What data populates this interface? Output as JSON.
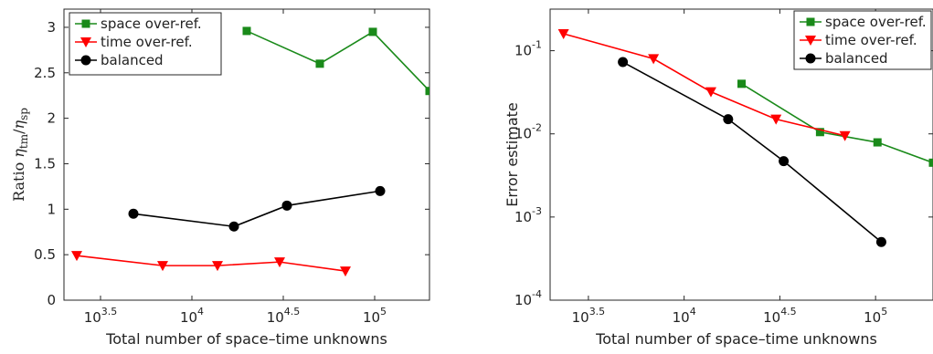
{
  "chart_data": [
    {
      "type": "line",
      "title": "",
      "xlabel": "Total number of space–time unknowns",
      "ylabel": {
        "prefix": "Ratio ",
        "num": "η",
        "num_sub": "tm",
        "sep": "/",
        "den": "η",
        "den_sub": "sp"
      },
      "xscale": "log10",
      "xlim": [
        3.3,
        5.3
      ],
      "ylim": [
        0,
        3.2
      ],
      "xticks": [
        {
          "base": "10",
          "exp": "3.5",
          "v": 3.5
        },
        {
          "base": "10",
          "exp": "4",
          "v": 4
        },
        {
          "base": "10",
          "exp": "4.5",
          "v": 4.5
        },
        {
          "base": "10",
          "exp": "5",
          "v": 5
        }
      ],
      "yticks": [
        {
          "label": "0",
          "v": 0
        },
        {
          "label": "0.5",
          "v": 0.5
        },
        {
          "label": "1",
          "v": 1
        },
        {
          "label": "1.5",
          "v": 1.5
        },
        {
          "label": "2",
          "v": 2
        },
        {
          "label": "2.5",
          "v": 2.5
        },
        {
          "label": "3",
          "v": 3
        }
      ],
      "grid": false,
      "legend_position": "top-left",
      "series": [
        {
          "name": "space over-ref.",
          "color": "#1a8a1a",
          "marker": "square",
          "x": [
            4.3,
            4.7,
            4.99,
            5.3
          ],
          "y": [
            2.96,
            2.6,
            2.95,
            2.3
          ]
        },
        {
          "name": "time over-ref.",
          "color": "#ff0000",
          "marker": "triangle-down",
          "x": [
            3.37,
            3.84,
            4.14,
            4.48,
            4.84
          ],
          "y": [
            0.49,
            0.38,
            0.38,
            0.42,
            0.32
          ]
        },
        {
          "name": "balanced",
          "color": "#000000",
          "marker": "circle",
          "x": [
            3.68,
            4.23,
            4.52,
            5.03
          ],
          "y": [
            0.95,
            0.81,
            1.04,
            1.2
          ]
        }
      ]
    },
    {
      "type": "line",
      "title": "",
      "xlabel": "Total number of space–time unknowns",
      "ylabel": "Error estimate",
      "xscale": "log10",
      "yscale": "log10",
      "xlim": [
        3.3,
        5.3
      ],
      "ylim": [
        -4,
        -0.5
      ],
      "xticks": [
        {
          "base": "10",
          "exp": "3.5",
          "v": 3.5
        },
        {
          "base": "10",
          "exp": "4",
          "v": 4
        },
        {
          "base": "10",
          "exp": "4.5",
          "v": 4.5
        },
        {
          "base": "10",
          "exp": "5",
          "v": 5
        }
      ],
      "yticks": [
        {
          "base": "10",
          "exp": "-1",
          "v": -1
        },
        {
          "base": "10",
          "exp": "-2",
          "v": -2
        },
        {
          "base": "10",
          "exp": "-3",
          "v": -3
        },
        {
          "base": "10",
          "exp": "-4",
          "v": -4
        }
      ],
      "grid": false,
      "legend_position": "top-right",
      "series": [
        {
          "name": "space over-ref.",
          "color": "#1a8a1a",
          "marker": "square",
          "x": [
            4.3,
            4.71,
            5.01,
            5.3
          ],
          "y": [
            0.04,
            0.0105,
            0.0079,
            0.0045
          ]
        },
        {
          "name": "time over-ref.",
          "color": "#ff0000",
          "marker": "triangle-down",
          "x": [
            3.37,
            3.84,
            4.14,
            4.48,
            4.84
          ],
          "y": [
            0.16,
            0.08,
            0.032,
            0.015,
            0.0095
          ]
        },
        {
          "name": "balanced",
          "color": "#000000",
          "marker": "circle",
          "x": [
            3.68,
            4.23,
            4.52,
            5.03
          ],
          "y": [
            0.073,
            0.015,
            0.0047,
            0.0005
          ]
        }
      ]
    }
  ]
}
